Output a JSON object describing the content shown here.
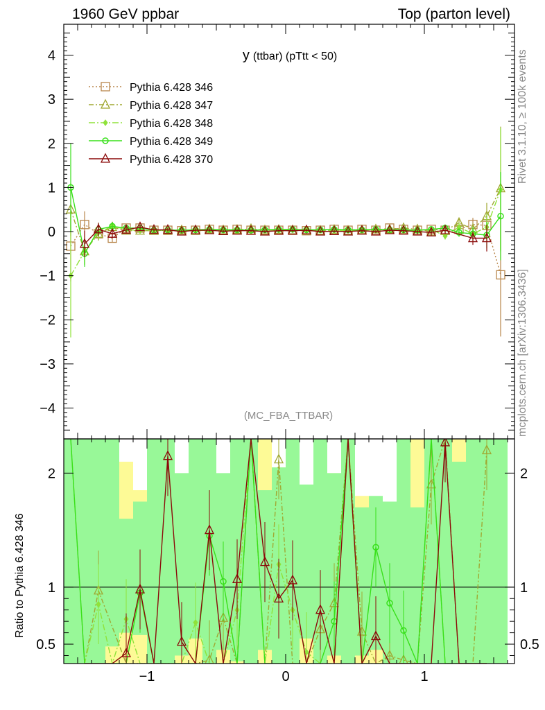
{
  "header": {
    "left": "1960 GeV ppbar",
    "right": "Top (parton level)"
  },
  "side_labels": {
    "rivet": "Rivet 3.1.10, ≥ 100k events",
    "mcplots": "mcplots.cern.ch [arXiv:1306.3436]"
  },
  "chart_data": [
    {
      "type": "line",
      "title": "y (ttbar) (pTtt < 50)",
      "title_main": "y",
      "title_sub": "(ttbar) (pTtt < 50)",
      "watermark": "(MC_FBA_TTBAR)",
      "xlim": [
        -1.6,
        1.65
      ],
      "ylim": [
        -4.7,
        4.7
      ],
      "yticks": [
        -4,
        -3,
        -2,
        -1,
        0,
        1,
        2,
        3,
        4
      ],
      "ytick_labels": [
        "−4",
        "−3",
        "−2",
        "−1",
        "0",
        "1",
        "2",
        "3",
        "4"
      ],
      "legend_position": "top-left",
      "x": [
        -1.55,
        -1.45,
        -1.35,
        -1.25,
        -1.15,
        -1.05,
        -0.95,
        -0.85,
        -0.75,
        -0.65,
        -0.55,
        -0.45,
        -0.35,
        -0.25,
        -0.15,
        -0.05,
        0.05,
        0.15,
        0.25,
        0.35,
        0.45,
        0.55,
        0.65,
        0.75,
        0.85,
        0.95,
        1.05,
        1.15,
        1.25,
        1.35,
        1.45,
        1.55
      ],
      "series": [
        {
          "name": "Pythia 6.428 346",
          "color": "#b8864b",
          "marker": "square",
          "dash": "2,3",
          "values": [
            -0.33,
            0.16,
            -0.05,
            -0.15,
            0.08,
            0.08,
            0.03,
            0.03,
            0.02,
            0.03,
            0.05,
            0.03,
            0.05,
            0.03,
            0.03,
            0.03,
            0.03,
            0.02,
            0.03,
            0.05,
            0.03,
            0.05,
            0.03,
            0.08,
            0.05,
            0.03,
            0.05,
            0.03,
            0.05,
            0.16,
            0.14,
            -0.98
          ],
          "errors": [
            0.8,
            0.3,
            0.15,
            0.1,
            0.08,
            0.06,
            0.05,
            0.04,
            0.04,
            0.04,
            0.04,
            0.03,
            0.03,
            0.03,
            0.03,
            0.03,
            0.03,
            0.03,
            0.03,
            0.03,
            0.04,
            0.04,
            0.04,
            0.04,
            0.05,
            0.06,
            0.07,
            0.08,
            0.1,
            0.15,
            0.3,
            1.4
          ]
        },
        {
          "name": "Pythia 6.428 347",
          "color": "#a0a832",
          "marker": "triangle",
          "dash": "7,3,2,3",
          "values": [
            0.5,
            -0.45,
            -0.05,
            0.1,
            0.02,
            0.02,
            0.02,
            0.03,
            0.03,
            0.02,
            0.05,
            0.03,
            0.04,
            0.06,
            0.03,
            0.04,
            0.03,
            0.02,
            0.02,
            0.04,
            0.02,
            0.03,
            0.05,
            0.05,
            0.08,
            0.05,
            0.0,
            0.02,
            0.2,
            0.05,
            0.35,
            0.98
          ],
          "errors": [
            0.6,
            0.3,
            0.15,
            0.1,
            0.08,
            0.06,
            0.05,
            0.04,
            0.04,
            0.04,
            0.04,
            0.03,
            0.03,
            0.03,
            0.03,
            0.03,
            0.03,
            0.03,
            0.03,
            0.03,
            0.04,
            0.04,
            0.04,
            0.04,
            0.05,
            0.06,
            0.07,
            0.08,
            0.1,
            0.15,
            0.3,
            1.4
          ]
        },
        {
          "name": "Pythia 6.428 348",
          "color": "#8fe23a",
          "marker": "diamond",
          "dash": "9,3,2,3",
          "values": [
            -1.0,
            -0.45,
            -0.02,
            0.12,
            0.05,
            0.02,
            0.03,
            0.02,
            0.03,
            0.02,
            0.03,
            0.04,
            0.03,
            0.02,
            0.05,
            0.03,
            0.04,
            0.03,
            0.04,
            0.02,
            0.03,
            0.04,
            0.03,
            0.05,
            0.02,
            0.03,
            0.05,
            -0.1,
            0.1,
            -0.05,
            0.1,
            0.95
          ],
          "errors": [
            1.4,
            0.3,
            0.15,
            0.1,
            0.08,
            0.06,
            0.05,
            0.04,
            0.04,
            0.04,
            0.04,
            0.03,
            0.03,
            0.03,
            0.03,
            0.03,
            0.03,
            0.03,
            0.03,
            0.03,
            0.04,
            0.04,
            0.04,
            0.04,
            0.05,
            0.06,
            0.07,
            0.08,
            0.1,
            0.15,
            0.3,
            1.4
          ]
        },
        {
          "name": "Pythia 6.428 349",
          "color": "#38e01a",
          "marker": "circle",
          "dash": "",
          "values": [
            1.0,
            -0.5,
            0.05,
            0.12,
            0.08,
            0.08,
            0.03,
            0.04,
            0.03,
            0.04,
            0.05,
            0.04,
            0.04,
            0.03,
            0.04,
            0.05,
            0.05,
            0.04,
            0.04,
            0.05,
            0.04,
            0.04,
            0.05,
            0.04,
            0.04,
            0.03,
            0.05,
            0.08,
            -0.02,
            -0.05,
            -0.08,
            0.35
          ],
          "errors": [
            1.0,
            0.3,
            0.15,
            0.1,
            0.08,
            0.06,
            0.05,
            0.04,
            0.04,
            0.04,
            0.04,
            0.03,
            0.03,
            0.03,
            0.03,
            0.03,
            0.03,
            0.03,
            0.03,
            0.03,
            0.04,
            0.04,
            0.04,
            0.04,
            0.05,
            0.06,
            0.07,
            0.08,
            0.1,
            0.15,
            0.3,
            1.0
          ]
        },
        {
          "name": "Pythia 6.428 370",
          "color": "#8b0a0a",
          "marker": "triangle",
          "dash": "",
          "values": [
            null,
            -0.28,
            0.05,
            -0.05,
            0.04,
            0.1,
            0.04,
            0.04,
            0.0,
            0.03,
            0.03,
            0.01,
            0.02,
            0.02,
            0.0,
            0.02,
            0.02,
            0.03,
            0.0,
            0.01,
            0.0,
            0.02,
            0.0,
            0.03,
            0.02,
            0.0,
            -0.02,
            0.03,
            null,
            -0.15,
            -0.15,
            null
          ],
          "errors": [
            0,
            0.3,
            0.15,
            0.1,
            0.08,
            0.06,
            0.05,
            0.04,
            0.04,
            0.04,
            0.04,
            0.03,
            0.03,
            0.03,
            0.03,
            0.03,
            0.03,
            0.03,
            0.03,
            0.03,
            0.04,
            0.04,
            0.04,
            0.04,
            0.05,
            0.06,
            0.07,
            0.08,
            0,
            0.15,
            0.3,
            0
          ]
        }
      ]
    },
    {
      "type": "line",
      "ylabel": "Ratio to Pythia 6.428 346",
      "xlim": [
        -1.6,
        1.65
      ],
      "ylim": [
        0.33,
        2.3
      ],
      "yticks": [
        0.5,
        1,
        2
      ],
      "ytick_labels": [
        "0.5",
        "1",
        "2"
      ],
      "xticks": [
        -1,
        0,
        1
      ],
      "xtick_labels": [
        "−1",
        "0",
        "1"
      ],
      "reference_line": 1,
      "band_x": [
        -1.55,
        -1.45,
        -1.35,
        -1.25,
        -1.15,
        -1.05,
        -0.95,
        -0.85,
        -0.75,
        -0.65,
        -0.55,
        -0.45,
        -0.35,
        -0.25,
        -0.15,
        -0.05,
        0.05,
        0.15,
        0.25,
        0.35,
        0.45,
        0.55,
        0.65,
        0.75,
        0.85,
        0.95,
        1.05,
        1.15,
        1.25,
        1.35,
        1.45,
        1.55
      ],
      "band_outer": [
        [
          0.33,
          2.3
        ],
        [
          0.33,
          2.3
        ],
        [
          0.33,
          2.3
        ],
        [
          0.33,
          2.1
        ],
        [
          0.33,
          2.1
        ],
        [
          0.33,
          1.85
        ],
        [
          0.33,
          2.3
        ],
        [
          0.33,
          2.05
        ],
        [
          0.33,
          1.9
        ],
        [
          0.33,
          2.1
        ],
        [
          0.33,
          2.0
        ],
        [
          0.33,
          1.85
        ],
        [
          0.33,
          1.8
        ],
        [
          0.33,
          2.1
        ],
        [
          0.33,
          2.3
        ],
        [
          0.33,
          2.05
        ],
        [
          0.33,
          2.2
        ],
        [
          0.33,
          1.85
        ],
        [
          0.33,
          1.95
        ],
        [
          0.33,
          2.0
        ],
        [
          0.33,
          2.3
        ],
        [
          0.33,
          1.8
        ],
        [
          0.33,
          1.75
        ],
        [
          0.33,
          1.65
        ],
        [
          0.33,
          1.9
        ],
        [
          0.33,
          2.3
        ],
        [
          0.33,
          2.3
        ],
        [
          0.33,
          2.3
        ],
        [
          0.33,
          2.3
        ],
        [
          0.33,
          2.0
        ],
        [
          0.33,
          2.2
        ],
        [
          0.33,
          2.3
        ]
      ],
      "band_inner": [
        [
          0.33,
          2.3
        ],
        [
          0.33,
          2.3
        ],
        [
          0.33,
          2.3
        ],
        [
          0.48,
          2.3
        ],
        [
          0.6,
          1.6
        ],
        [
          0.58,
          1.75
        ],
        [
          0.33,
          2.3
        ],
        [
          0.33,
          2.3
        ],
        [
          0.4,
          2.0
        ],
        [
          0.55,
          2.3
        ],
        [
          0.33,
          2.3
        ],
        [
          0.45,
          2.0
        ],
        [
          0.35,
          2.3
        ],
        [
          0.33,
          2.3
        ],
        [
          0.45,
          1.85
        ],
        [
          0.33,
          2.05
        ],
        [
          0.33,
          2.3
        ],
        [
          0.55,
          1.9
        ],
        [
          0.33,
          2.3
        ],
        [
          0.4,
          2.0
        ],
        [
          0.33,
          2.3
        ],
        [
          0.4,
          1.7
        ],
        [
          0.45,
          1.8
        ],
        [
          0.33,
          1.75
        ],
        [
          0.33,
          2.3
        ],
        [
          0.33,
          1.7
        ],
        [
          0.33,
          2.3
        ],
        [
          0.33,
          2.3
        ],
        [
          0.33,
          2.1
        ],
        [
          0.33,
          2.3
        ],
        [
          0.33,
          2.3
        ],
        [
          0.33,
          2.3
        ]
      ],
      "series": [
        {
          "name": "Pythia 6.428 347",
          "color": "#a0a832",
          "marker": "triangle",
          "dash": "7,3,2,3",
          "values": [
            null,
            0.33,
            0.97,
            null,
            0.33,
            0.33,
            0.33,
            0.33,
            0.33,
            0.33,
            0.36,
            0.73,
            0.33,
            2.3,
            0.33,
            2.12,
            0.33,
            0.33,
            0.63,
            0.86,
            2.3,
            0.61,
            0.33,
            0.4,
            0.36,
            0.33,
            1.9,
            2.3,
            0.33,
            0.33,
            2.2,
            null
          ]
        },
        {
          "name": "Pythia 6.428 348",
          "color": "#8fe23a",
          "marker": "diamond",
          "dash": "9,3,2,3",
          "values": [
            2.3,
            0.33,
            0.85,
            0.33,
            0.72,
            0.33,
            0.33,
            0.33,
            0.33,
            0.69,
            0.33,
            0.33,
            0.8,
            2.3,
            0.33,
            1.2,
            0.8,
            0.43,
            0.33,
            0.33,
            2.3,
            0.33,
            0.33,
            0.33,
            0.33,
            0.33,
            2.3,
            0.33,
            0.33,
            0.33,
            0.33,
            null
          ]
        },
        {
          "name": "Pythia 6.428 349",
          "color": "#38e01a",
          "marker": "circle",
          "dash": "",
          "values": [
            2.3,
            0.33,
            0.33,
            0.33,
            0.33,
            0.95,
            0.33,
            0.33,
            0.33,
            0.33,
            1.45,
            1.05,
            0.33,
            2.3,
            0.33,
            0.33,
            0.33,
            0.33,
            0.33,
            0.7,
            2.3,
            0.33,
            1.35,
            0.86,
            0.62,
            0.33,
            2.3,
            0.33,
            0.33,
            0.33,
            0.33,
            null
          ]
        },
        {
          "name": "Pythia 6.428 370",
          "color": "#8b0a0a",
          "marker": "triangle",
          "dash": "",
          "values": [
            null,
            0.33,
            0.33,
            0.33,
            0.42,
            0.98,
            0.33,
            2.15,
            0.52,
            0.33,
            1.5,
            0.33,
            1.07,
            2.3,
            1.22,
            0.9,
            1.06,
            0.33,
            0.8,
            0.33,
            2.3,
            0.33,
            0.57,
            0.33,
            0.33,
            0.33,
            0.33,
            2.27,
            0.33,
            0.33,
            0.33,
            null
          ]
        }
      ]
    }
  ]
}
